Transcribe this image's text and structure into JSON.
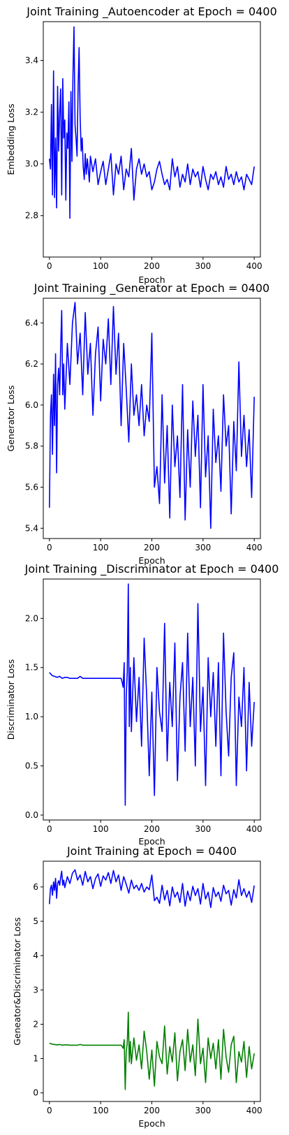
{
  "colors": {
    "blue": "#0000ff",
    "green": "#008000"
  },
  "chart_data": [
    {
      "type": "line",
      "title": "Joint Training _Autoencoder at Epoch = 0400",
      "xlabel": "Epoch",
      "ylabel": "Embedding Loss",
      "xlim": [
        -12,
        412
      ],
      "ylim": [
        2.64,
        3.55
      ],
      "xticks": [
        0,
        100,
        200,
        300,
        400
      ],
      "yticks": [
        2.8,
        3.0,
        3.2,
        3.4
      ],
      "ytick_format": 1,
      "grid": false,
      "series": [
        {
          "color": "#0000ff",
          "x": [
            0,
            2,
            4,
            6,
            8,
            10,
            12,
            14,
            16,
            18,
            20,
            22,
            24,
            26,
            28,
            30,
            32,
            34,
            36,
            38,
            40,
            42,
            44,
            46,
            48,
            50,
            52,
            54,
            56,
            58,
            60,
            62,
            64,
            66,
            68,
            70,
            72,
            74,
            76,
            78,
            80,
            85,
            90,
            95,
            100,
            105,
            110,
            115,
            120,
            125,
            130,
            135,
            140,
            145,
            150,
            155,
            160,
            165,
            170,
            175,
            180,
            185,
            190,
            195,
            200,
            205,
            210,
            215,
            220,
            225,
            230,
            235,
            240,
            245,
            250,
            255,
            260,
            265,
            270,
            275,
            280,
            285,
            290,
            295,
            300,
            305,
            310,
            315,
            320,
            325,
            330,
            335,
            340,
            345,
            350,
            355,
            360,
            365,
            370,
            375,
            380,
            385,
            390,
            395,
            400
          ],
          "y": [
            3.02,
            2.98,
            3.23,
            2.88,
            3.36,
            2.87,
            3.1,
            2.83,
            3.3,
            3.05,
            3.2,
            3.29,
            2.88,
            3.33,
            3.1,
            3.17,
            2.86,
            3.12,
            3.06,
            3.24,
            2.79,
            3.28,
            3.01,
            3.34,
            3.53,
            3.15,
            3.1,
            3.03,
            3.3,
            3.45,
            3.18,
            3.05,
            3.1,
            2.99,
            2.94,
            3.04,
            2.96,
            3.02,
            2.98,
            2.93,
            3.03,
            2.97,
            3.02,
            2.92,
            2.97,
            3.01,
            2.92,
            2.98,
            3.04,
            2.88,
            3.0,
            2.96,
            3.03,
            2.9,
            2.98,
            2.95,
            3.06,
            2.86,
            2.98,
            3.02,
            2.96,
            3.0,
            2.95,
            2.97,
            2.9,
            2.93,
            2.98,
            3.01,
            2.96,
            2.92,
            2.94,
            2.9,
            3.02,
            2.95,
            2.99,
            2.91,
            2.96,
            2.93,
            3.0,
            2.92,
            2.98,
            2.95,
            2.97,
            2.91,
            2.99,
            2.94,
            2.9,
            2.96,
            2.94,
            2.97,
            2.92,
            2.95,
            2.91,
            2.99,
            2.94,
            2.96,
            2.92,
            2.97,
            2.93,
            2.95,
            2.9,
            2.96,
            2.94,
            2.92,
            2.99
          ]
        }
      ]
    },
    {
      "type": "line",
      "title": "Joint Training _Generator at Epoch = 0400",
      "xlabel": "Epoch",
      "ylabel": "Generator Loss",
      "xlim": [
        -12,
        412
      ],
      "ylim": [
        5.35,
        6.52
      ],
      "xticks": [
        0,
        100,
        200,
        300,
        400
      ],
      "yticks": [
        5.4,
        5.6,
        5.8,
        6.0,
        6.2,
        6.4
      ],
      "ytick_format": 1,
      "grid": false,
      "series": [
        {
          "color": "#0000ff",
          "x": [
            0,
            2,
            4,
            6,
            8,
            10,
            12,
            14,
            16,
            18,
            20,
            22,
            24,
            26,
            28,
            30,
            35,
            40,
            45,
            50,
            55,
            60,
            65,
            70,
            75,
            80,
            85,
            90,
            95,
            100,
            105,
            110,
            115,
            120,
            125,
            130,
            135,
            140,
            145,
            150,
            155,
            160,
            165,
            170,
            175,
            180,
            185,
            190,
            195,
            200,
            205,
            210,
            215,
            220,
            225,
            230,
            235,
            240,
            245,
            250,
            255,
            260,
            265,
            270,
            275,
            280,
            285,
            290,
            295,
            300,
            305,
            310,
            315,
            320,
            325,
            330,
            335,
            340,
            345,
            350,
            355,
            360,
            365,
            370,
            375,
            380,
            385,
            390,
            395,
            400
          ],
          "y": [
            5.5,
            5.95,
            6.05,
            5.76,
            6.15,
            5.9,
            6.25,
            5.67,
            6.1,
            6.18,
            6.05,
            6.28,
            6.46,
            6.05,
            6.2,
            5.98,
            6.3,
            6.1,
            6.4,
            6.5,
            6.2,
            6.35,
            6.05,
            6.45,
            6.15,
            6.3,
            5.95,
            6.25,
            6.38,
            6.02,
            6.32,
            6.2,
            6.42,
            6.1,
            6.48,
            6.15,
            6.35,
            5.9,
            6.3,
            6.08,
            5.82,
            6.2,
            5.95,
            6.05,
            5.9,
            6.1,
            5.85,
            6.0,
            5.92,
            6.35,
            5.6,
            5.7,
            5.52,
            6.05,
            5.62,
            5.9,
            5.45,
            6.0,
            5.7,
            5.85,
            5.55,
            6.1,
            5.44,
            5.88,
            5.6,
            6.02,
            5.75,
            5.95,
            5.5,
            6.1,
            5.65,
            5.85,
            5.4,
            5.98,
            5.72,
            5.85,
            5.58,
            6.05,
            5.8,
            5.9,
            5.47,
            5.92,
            5.68,
            6.21,
            5.75,
            5.95,
            5.7,
            5.88,
            5.55,
            6.04
          ]
        }
      ]
    },
    {
      "type": "line",
      "title": "Joint Training _Discriminator at Epoch = 0400",
      "xlabel": "Epoch",
      "ylabel": "Discriminator Loss",
      "xlim": [
        -12,
        412
      ],
      "ylim": [
        -0.05,
        2.4
      ],
      "xticks": [
        0,
        100,
        200,
        300,
        400
      ],
      "yticks": [
        0.0,
        0.5,
        1.0,
        1.5,
        2.0
      ],
      "ytick_format": 1,
      "grid": false,
      "series": [
        {
          "color": "#0000ff",
          "x": [
            0,
            5,
            10,
            15,
            20,
            25,
            30,
            35,
            40,
            45,
            50,
            55,
            60,
            65,
            70,
            80,
            90,
            100,
            110,
            120,
            130,
            140,
            142,
            144,
            146,
            148,
            150,
            152,
            154,
            156,
            158,
            160,
            165,
            170,
            175,
            180,
            185,
            190,
            195,
            200,
            205,
            210,
            215,
            220,
            225,
            230,
            235,
            240,
            245,
            250,
            255,
            260,
            265,
            270,
            275,
            280,
            285,
            290,
            295,
            300,
            305,
            310,
            315,
            320,
            325,
            330,
            335,
            340,
            345,
            350,
            355,
            360,
            365,
            370,
            375,
            380,
            385,
            390,
            395,
            400
          ],
          "y": [
            1.45,
            1.42,
            1.41,
            1.4,
            1.41,
            1.39,
            1.4,
            1.4,
            1.39,
            1.39,
            1.39,
            1.39,
            1.41,
            1.39,
            1.39,
            1.39,
            1.39,
            1.39,
            1.39,
            1.39,
            1.39,
            1.39,
            1.35,
            1.3,
            1.55,
            0.1,
            1.2,
            1.45,
            2.35,
            0.9,
            1.5,
            0.85,
            1.6,
            0.95,
            1.4,
            0.7,
            1.8,
            1.2,
            0.4,
            1.25,
            0.2,
            1.5,
            1.05,
            0.85,
            1.95,
            0.55,
            1.35,
            0.9,
            1.75,
            0.35,
            1.2,
            1.55,
            0.65,
            1.85,
            0.9,
            1.4,
            0.5,
            2.15,
            0.85,
            1.3,
            0.3,
            1.6,
            1.0,
            1.45,
            0.7,
            1.55,
            0.4,
            1.85,
            1.05,
            0.6,
            1.4,
            1.65,
            0.3,
            1.2,
            0.9,
            1.5,
            0.45,
            1.35,
            0.7,
            1.15
          ]
        }
      ]
    },
    {
      "type": "line",
      "title": "Joint Training at Epoch = 0400",
      "xlabel": "Epoch",
      "ylabel": "Geneator&Discriminator Loss",
      "xlim": [
        -12,
        412
      ],
      "ylim": [
        -0.25,
        6.75
      ],
      "xticks": [
        0,
        100,
        200,
        300,
        400
      ],
      "yticks": [
        0,
        1,
        2,
        3,
        4,
        5,
        6
      ],
      "ytick_format": 0,
      "grid": false,
      "series": [
        {
          "color": "#0000ff",
          "x": [
            0,
            2,
            4,
            6,
            8,
            10,
            12,
            14,
            16,
            18,
            20,
            22,
            24,
            26,
            28,
            30,
            35,
            40,
            45,
            50,
            55,
            60,
            65,
            70,
            75,
            80,
            85,
            90,
            95,
            100,
            105,
            110,
            115,
            120,
            125,
            130,
            135,
            140,
            145,
            150,
            155,
            160,
            165,
            170,
            175,
            180,
            185,
            190,
            195,
            200,
            205,
            210,
            215,
            220,
            225,
            230,
            235,
            240,
            245,
            250,
            255,
            260,
            265,
            270,
            275,
            280,
            285,
            290,
            295,
            300,
            305,
            310,
            315,
            320,
            325,
            330,
            335,
            340,
            345,
            350,
            355,
            360,
            365,
            370,
            375,
            380,
            385,
            390,
            395,
            400
          ],
          "y": [
            5.5,
            5.95,
            6.05,
            5.76,
            6.15,
            5.9,
            6.25,
            5.67,
            6.1,
            6.18,
            6.05,
            6.28,
            6.46,
            6.05,
            6.2,
            5.98,
            6.3,
            6.1,
            6.4,
            6.5,
            6.2,
            6.35,
            6.05,
            6.45,
            6.15,
            6.3,
            5.95,
            6.25,
            6.38,
            6.02,
            6.32,
            6.2,
            6.42,
            6.1,
            6.48,
            6.15,
            6.35,
            5.9,
            6.3,
            6.08,
            5.82,
            6.2,
            5.95,
            6.05,
            5.9,
            6.1,
            5.85,
            6.0,
            5.92,
            6.35,
            5.6,
            5.7,
            5.52,
            6.05,
            5.62,
            5.9,
            5.45,
            6.0,
            5.7,
            5.85,
            5.55,
            6.1,
            5.44,
            5.88,
            5.6,
            6.02,
            5.75,
            5.95,
            5.5,
            6.1,
            5.65,
            5.85,
            5.4,
            5.98,
            5.72,
            5.85,
            5.58,
            6.05,
            5.8,
            5.9,
            5.47,
            5.92,
            5.68,
            6.21,
            5.75,
            5.95,
            5.7,
            5.88,
            5.55,
            6.04
          ]
        },
        {
          "color": "#008000",
          "x": [
            0,
            5,
            10,
            15,
            20,
            25,
            30,
            35,
            40,
            45,
            50,
            55,
            60,
            65,
            70,
            80,
            90,
            100,
            110,
            120,
            130,
            140,
            142,
            144,
            146,
            148,
            150,
            152,
            154,
            156,
            158,
            160,
            165,
            170,
            175,
            180,
            185,
            190,
            195,
            200,
            205,
            210,
            215,
            220,
            225,
            230,
            235,
            240,
            245,
            250,
            255,
            260,
            265,
            270,
            275,
            280,
            285,
            290,
            295,
            300,
            305,
            310,
            315,
            320,
            325,
            330,
            335,
            340,
            345,
            350,
            355,
            360,
            365,
            370,
            375,
            380,
            385,
            390,
            395,
            400
          ],
          "y": [
            1.45,
            1.42,
            1.41,
            1.4,
            1.41,
            1.39,
            1.4,
            1.4,
            1.39,
            1.39,
            1.39,
            1.39,
            1.41,
            1.39,
            1.39,
            1.39,
            1.39,
            1.39,
            1.39,
            1.39,
            1.39,
            1.39,
            1.35,
            1.3,
            1.55,
            0.1,
            1.2,
            1.45,
            2.35,
            0.9,
            1.5,
            0.85,
            1.6,
            0.95,
            1.4,
            0.7,
            1.8,
            1.2,
            0.4,
            1.25,
            0.2,
            1.5,
            1.05,
            0.85,
            1.95,
            0.55,
            1.35,
            0.9,
            1.75,
            0.35,
            1.2,
            1.55,
            0.65,
            1.85,
            0.9,
            1.4,
            0.5,
            2.15,
            0.85,
            1.3,
            0.3,
            1.6,
            1.0,
            1.45,
            0.7,
            1.55,
            0.4,
            1.85,
            1.05,
            0.6,
            1.4,
            1.65,
            0.3,
            1.2,
            0.9,
            1.5,
            0.45,
            1.35,
            0.7,
            1.15
          ]
        }
      ]
    }
  ]
}
